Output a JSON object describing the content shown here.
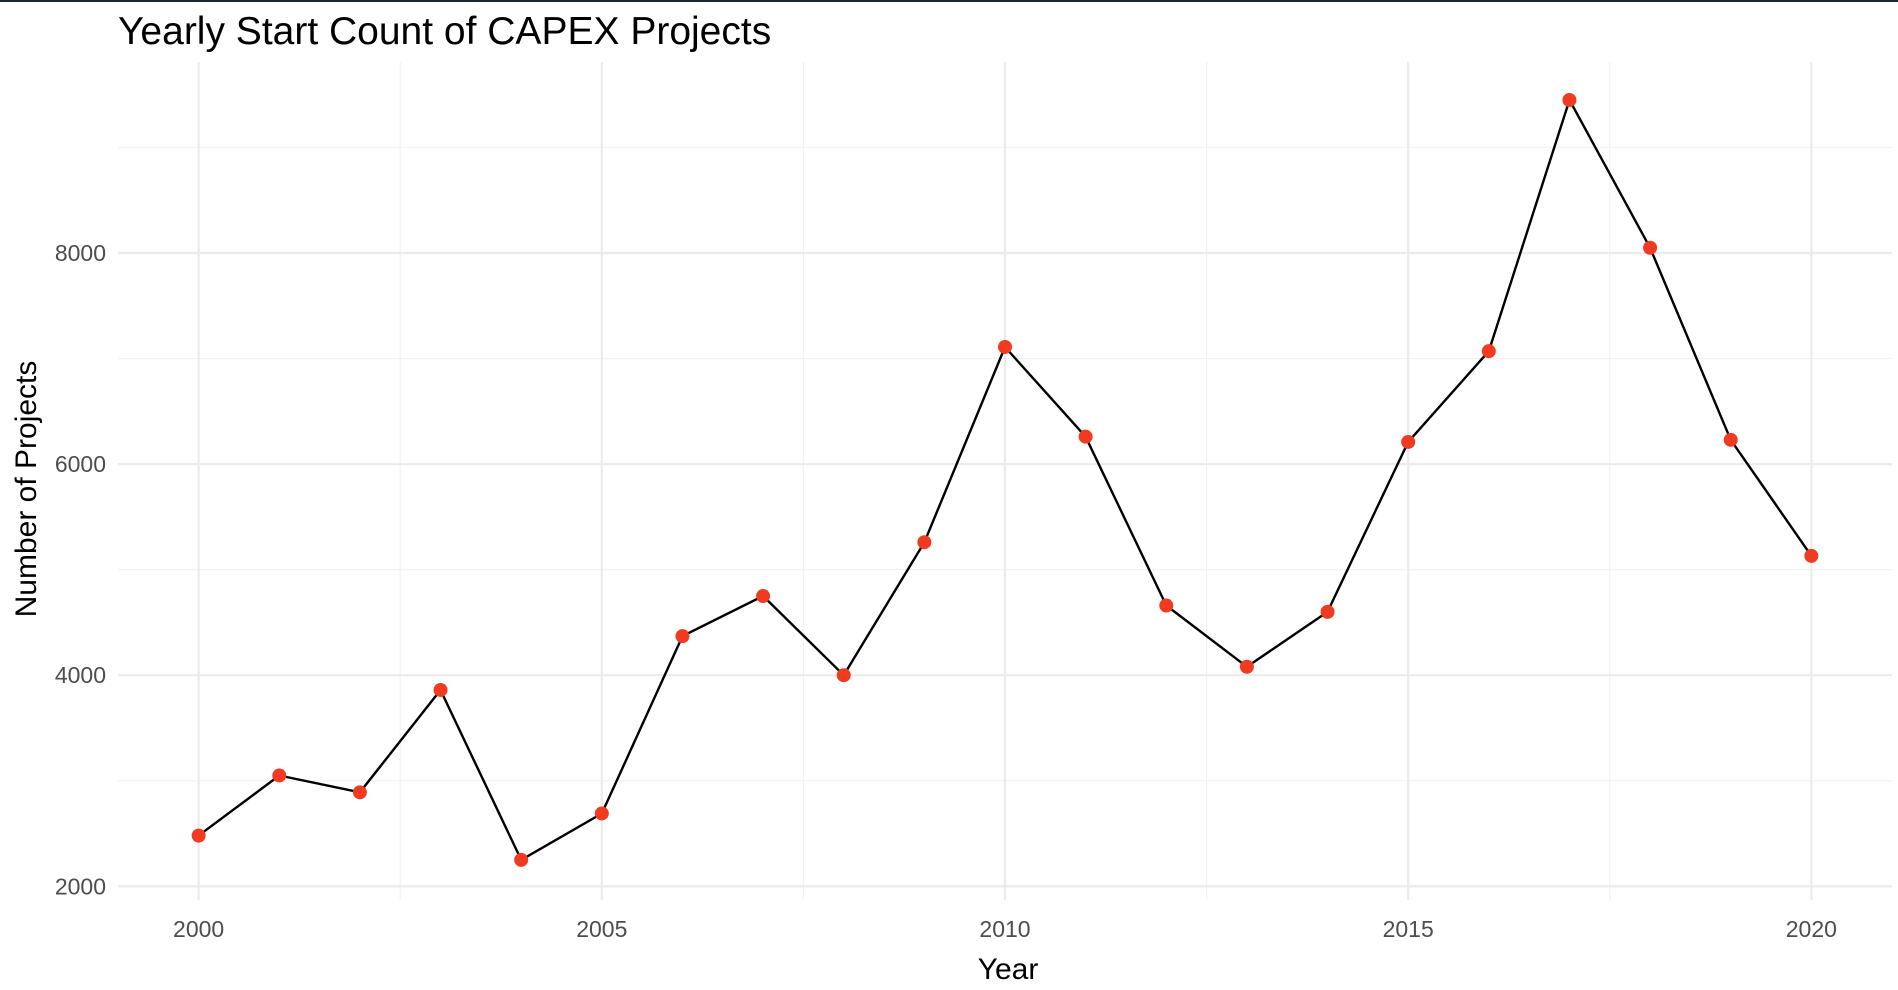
{
  "chart_data": {
    "type": "line",
    "title": "Yearly Start Count of CAPEX Projects",
    "xlabel": "Year",
    "ylabel": "Number of Projects",
    "x": [
      2000,
      2001,
      2002,
      2003,
      2004,
      2005,
      2006,
      2007,
      2008,
      2009,
      2010,
      2011,
      2012,
      2013,
      2014,
      2015,
      2016,
      2017,
      2018,
      2019,
      2020
    ],
    "series": [
      {
        "values": [
          2480,
          3050,
          2890,
          3860,
          2250,
          2690,
          4370,
          4750,
          4000,
          5260,
          7110,
          6260,
          4660,
          4080,
          4600,
          6210,
          7070,
          9450,
          8050,
          6230,
          5130
        ]
      }
    ],
    "xlim": [
      1999,
      2021
    ],
    "ylim": [
      1870,
      9810
    ],
    "x_ticks": [
      2000,
      2005,
      2010,
      2015,
      2020
    ],
    "y_ticks": [
      2000,
      4000,
      6000,
      8000
    ],
    "grid": true,
    "legend": "none",
    "colors": {
      "line": "#000000",
      "point": "#f03b20",
      "grid_major": "#ebebeb",
      "grid_minor": "#f2f2f2"
    }
  }
}
